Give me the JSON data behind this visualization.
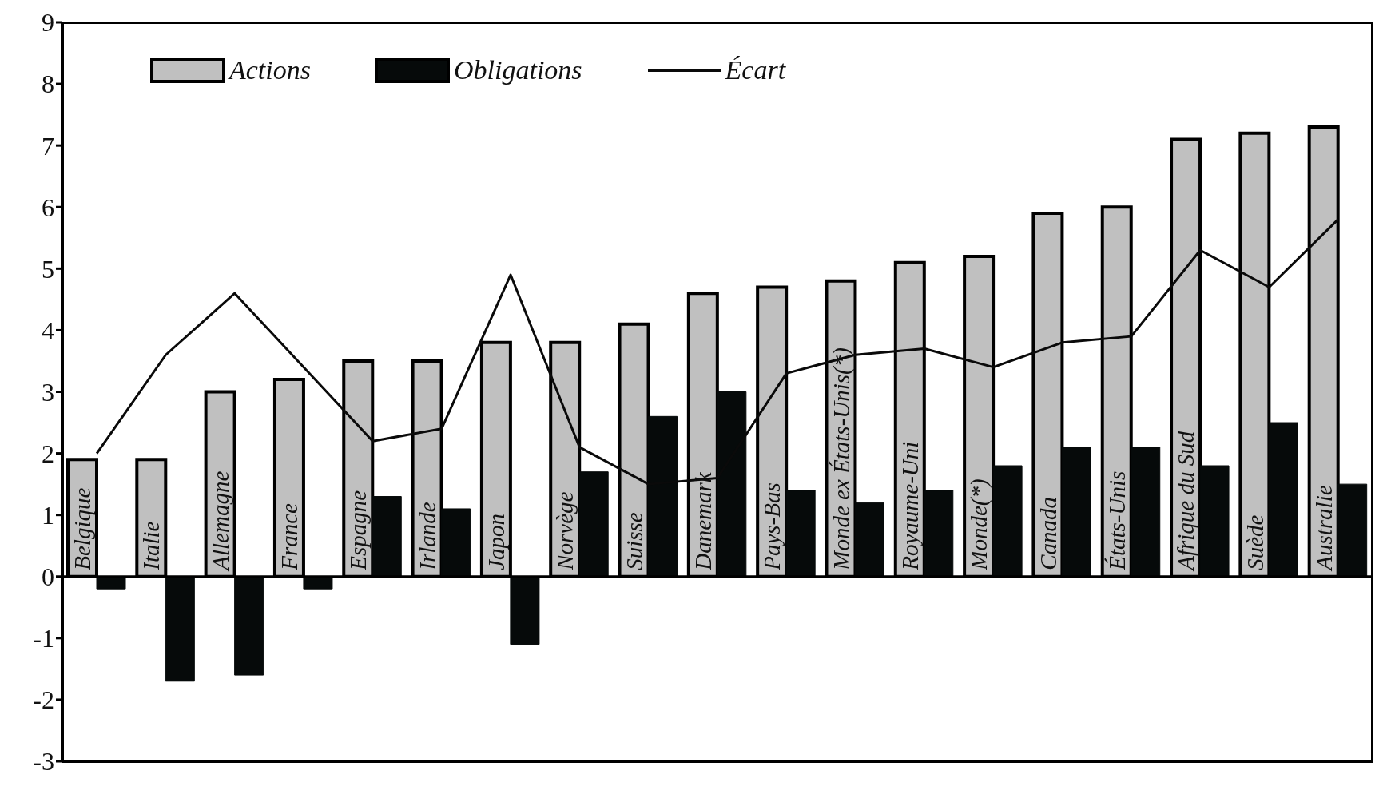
{
  "chart_data": {
    "type": "bar",
    "categories": [
      "Belgique",
      "Italie",
      "Allemagne",
      "France",
      "Espagne",
      "Irlande",
      "Japon",
      "Norvège",
      "Suisse",
      "Danemark",
      "Pays-Bas",
      "Monde ex États-Unis(*)",
      "Royaume-Uni",
      "Monde(*)",
      "Canada",
      "États-Unis",
      "Afrique du Sud",
      "Suède",
      "Australie"
    ],
    "series": [
      {
        "name": "Actions",
        "color": "#c0c0c0",
        "values": [
          1.9,
          1.9,
          3.0,
          3.2,
          3.5,
          3.5,
          3.8,
          3.8,
          4.1,
          4.6,
          4.7,
          4.8,
          5.1,
          5.2,
          5.9,
          6.0,
          7.1,
          7.2,
          7.3
        ]
      },
      {
        "name": "Obligations",
        "color": "#060a0a",
        "values": [
          -0.2,
          -1.7,
          -1.6,
          -0.2,
          1.3,
          1.1,
          -1.1,
          1.7,
          2.6,
          3.0,
          1.4,
          1.2,
          1.4,
          1.8,
          2.1,
          2.1,
          1.8,
          2.5,
          1.5
        ]
      },
      {
        "name": "Écart",
        "type": "line",
        "color": "#0a0a0a",
        "values": [
          2.0,
          3.6,
          4.6,
          3.4,
          2.2,
          2.4,
          4.9,
          2.1,
          1.5,
          1.6,
          3.3,
          3.6,
          3.7,
          3.4,
          3.8,
          3.9,
          5.3,
          4.7,
          5.8
        ]
      }
    ],
    "ylim": [
      -3,
      9
    ],
    "yticks": [
      -3,
      -2,
      -1,
      0,
      1,
      2,
      3,
      4,
      5,
      6,
      7,
      8,
      9
    ],
    "grid": false,
    "legend": "top left",
    "marker": "none",
    "line_style": "solid"
  }
}
